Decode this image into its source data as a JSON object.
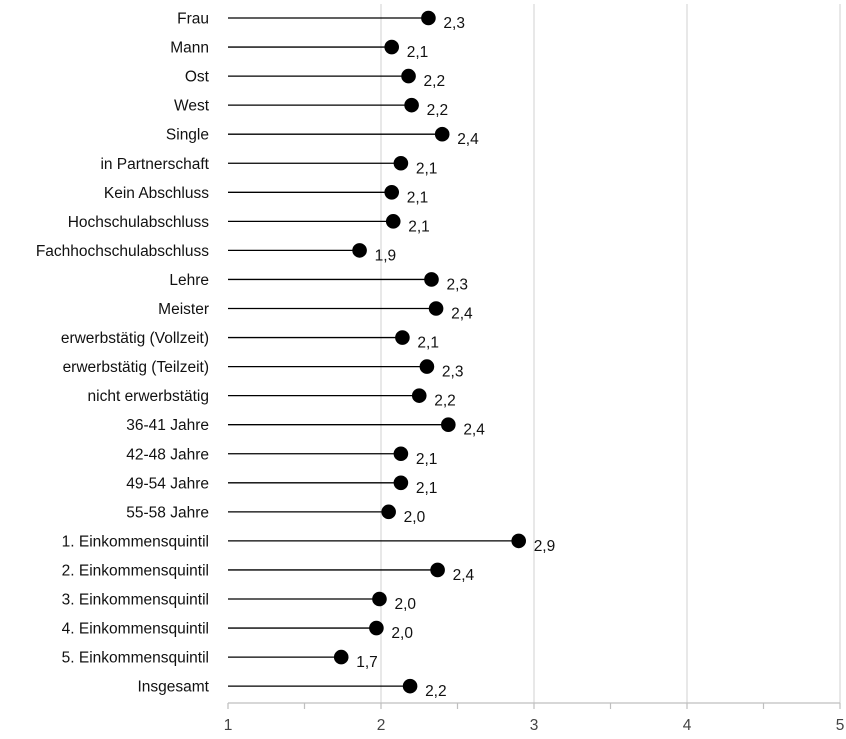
{
  "chart_data": {
    "type": "lollipop",
    "orientation": "horizontal",
    "categories": [
      "Frau",
      "Mann",
      "Ost",
      "West",
      "Single",
      "in Partnerschaft",
      "Kein Abschluss",
      "Hochschulabschluss",
      "Fachhochschulabschluss",
      "Lehre",
      "Meister",
      "erwerbstätig (Vollzeit)",
      "erwerbstätig (Teilzeit)",
      "nicht erwerbstätig",
      "36-41 Jahre",
      "42-48 Jahre",
      "49-54 Jahre",
      "55-58 Jahre",
      "1. Einkommensquintil",
      "2. Einkommensquintil",
      "3. Einkommensquintil",
      "4. Einkommensquintil",
      "5. Einkommensquintil",
      "Insgesamt"
    ],
    "values": [
      2.31,
      2.07,
      2.18,
      2.2,
      2.4,
      2.13,
      2.07,
      2.08,
      1.86,
      2.33,
      2.36,
      2.14,
      2.3,
      2.25,
      2.44,
      2.13,
      2.13,
      2.05,
      2.9,
      2.37,
      1.99,
      1.97,
      1.74,
      2.19
    ],
    "value_labels": [
      "2,3",
      "2,1",
      "2,2",
      "2,2",
      "2,4",
      "2,1",
      "2,1",
      "2,1",
      "1,9",
      "2,3",
      "2,4",
      "2,1",
      "2,3",
      "2,2",
      "2,4",
      "2,1",
      "2,1",
      "2,0",
      "2,9",
      "2,4",
      "2,0",
      "2,0",
      "1,7",
      "2,2"
    ],
    "xlim": [
      1,
      5
    ],
    "x_ticks": [
      1,
      2,
      3,
      4,
      5
    ],
    "x_tick_labels": [
      "1",
      "2",
      "3",
      "4",
      "5"
    ],
    "grid": "vertical",
    "legend": "none",
    "colors": {
      "marker": "#000000",
      "stem": "#000000",
      "grid": "#d9d9d9",
      "axis": "#bfbfbf"
    }
  }
}
